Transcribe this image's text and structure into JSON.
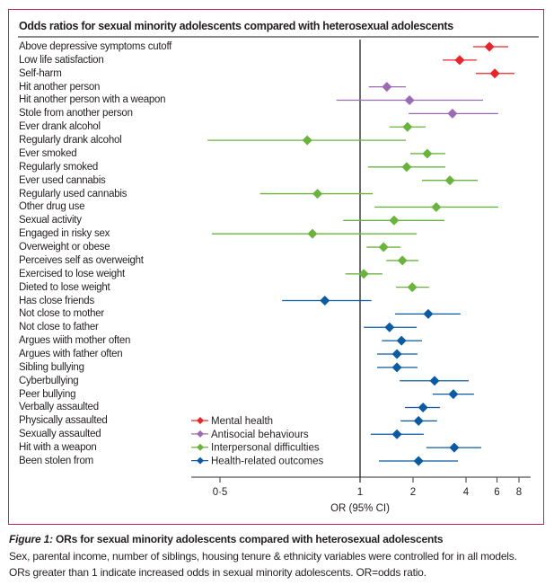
{
  "panel_title": "Odds ratios for sexual minority adolescents compared with heterosexual adolescents",
  "caption": {
    "figure_label": "Figure 1:",
    "title": " ORs for sexual minority adolescents compared with heterosexual adolescents",
    "line1": "Sex, parental income, number of siblings, housing tenure & ethnicity variables were controlled for in all models.",
    "line2": "ORs greater than 1 indicate increased odds in sexual minority adolescents. OR=odds ratio."
  },
  "chart_data": {
    "type": "forest",
    "title": "Odds ratios for sexual minority adolescents compared with heterosexual adolescents",
    "xlabel": "OR (95% CI)",
    "ylabel": "",
    "x_scale": "log",
    "xlim": [
      0.4,
      9
    ],
    "reference_line": 1,
    "x_ticks": [
      0.5,
      1,
      2,
      4,
      6,
      8
    ],
    "x_tick_labels": [
      "0·5",
      "1",
      "2",
      "4",
      "6",
      "8"
    ],
    "grid": false,
    "legend_position": "bottom-left",
    "legend": [
      {
        "key": "mental",
        "label": "Mental health",
        "color": "#e8262a"
      },
      {
        "key": "antisocial",
        "label": "Antisocial behaviours",
        "color": "#9b6bb3"
      },
      {
        "key": "interpersonal",
        "label": "Interpersonal difficulties",
        "color": "#6ab43e"
      },
      {
        "key": "health",
        "label": "Health-related outcomes",
        "color": "#0b5aa2"
      }
    ],
    "rows": [
      {
        "label": "Above depressive symptoms cutoff",
        "group": "mental",
        "or": 5.43,
        "low": 4.39,
        "high": 6.95
      },
      {
        "label": "Low life satisfaction",
        "group": "mental",
        "or": 3.68,
        "low": 2.95,
        "high": 4.6
      },
      {
        "label": "Self-harm",
        "group": "mental",
        "or": 5.83,
        "low": 4.55,
        "high": 7.54
      },
      {
        "label": "Hit another person",
        "group": "antisocial",
        "or": 1.42,
        "low": 1.12,
        "high": 1.82
      },
      {
        "label": "Hit another person with a weapon",
        "group": "antisocial",
        "or": 1.91,
        "low": 0.89,
        "high": 5.0
      },
      {
        "label": "Stole from another person",
        "group": "antisocial",
        "or": 3.35,
        "low": 1.89,
        "high": 6.1
      },
      {
        "label": "Ever drank alcohol",
        "group": "interpersonal",
        "or": 1.86,
        "low": 1.47,
        "high": 2.36
      },
      {
        "label": "Regularly drank alcohol",
        "group": "interpersonal",
        "or": 0.77,
        "low": 0.47,
        "high": 1.82
      },
      {
        "label": "Ever smoked",
        "group": "interpersonal",
        "or": 2.41,
        "low": 1.93,
        "high": 3.05
      },
      {
        "label": "Regularly smoked",
        "group": "interpersonal",
        "or": 1.84,
        "low": 1.11,
        "high": 3.05
      },
      {
        "label": "Ever used cannabis",
        "group": "interpersonal",
        "or": 3.24,
        "low": 2.25,
        "high": 4.66
      },
      {
        "label": "Regularly used cannabis",
        "group": "interpersonal",
        "or": 0.81,
        "low": 0.61,
        "high": 1.18
      },
      {
        "label": "Other drug use",
        "group": "interpersonal",
        "or": 2.71,
        "low": 1.21,
        "high": 6.1
      },
      {
        "label": "Sexual activity",
        "group": "interpersonal",
        "or": 1.56,
        "low": 0.92,
        "high": 3.02
      },
      {
        "label": "Engaged in risky sex",
        "group": "interpersonal",
        "or": 0.79,
        "low": 0.48,
        "high": 2.1
      },
      {
        "label": "Overweight or obese",
        "group": "interpersonal",
        "or": 1.36,
        "low": 1.09,
        "high": 1.7
      },
      {
        "label": "Perceives self as overweight",
        "group": "interpersonal",
        "or": 1.74,
        "low": 1.41,
        "high": 2.15
      },
      {
        "label": "Exercised to lose weight",
        "group": "interpersonal",
        "or": 1.05,
        "low": 0.93,
        "high": 1.34
      },
      {
        "label": "Dieted to lose weight",
        "group": "interpersonal",
        "or": 1.98,
        "low": 1.6,
        "high": 2.47
      },
      {
        "label": "Has close friends",
        "group": "health",
        "or": 0.84,
        "low": 0.68,
        "high": 1.16
      },
      {
        "label": "Not close to mother",
        "group": "health",
        "or": 2.44,
        "low": 1.58,
        "high": 3.72
      },
      {
        "label": "Not close to father",
        "group": "health",
        "or": 1.47,
        "low": 1.05,
        "high": 2.1
      },
      {
        "label": "Argues wiith mother often",
        "group": "health",
        "or": 1.72,
        "low": 1.33,
        "high": 2.25
      },
      {
        "label": "Argues with father often",
        "group": "health",
        "or": 1.62,
        "low": 1.25,
        "high": 2.12
      },
      {
        "label": "Sibling bullying",
        "group": "health",
        "or": 1.62,
        "low": 1.25,
        "high": 2.12
      },
      {
        "label": "Cyberbullying",
        "group": "health",
        "or": 2.65,
        "low": 1.68,
        "high": 4.14
      },
      {
        "label": "Peer bullying",
        "group": "health",
        "or": 3.39,
        "low": 2.59,
        "high": 4.44
      },
      {
        "label": "Verbally assaulted",
        "group": "health",
        "or": 2.28,
        "low": 1.8,
        "high": 2.85
      },
      {
        "label": "Physically assaulted",
        "group": "health",
        "or": 2.15,
        "low": 1.7,
        "high": 2.74
      },
      {
        "label": "Sexually assaulted",
        "group": "health",
        "or": 1.62,
        "low": 1.15,
        "high": 2.3
      },
      {
        "label": "Hit with a weapon",
        "group": "health",
        "or": 3.43,
        "low": 2.38,
        "high": 4.88
      },
      {
        "label": "Been stolen from",
        "group": "health",
        "or": 2.15,
        "low": 1.28,
        "high": 3.6
      }
    ]
  }
}
